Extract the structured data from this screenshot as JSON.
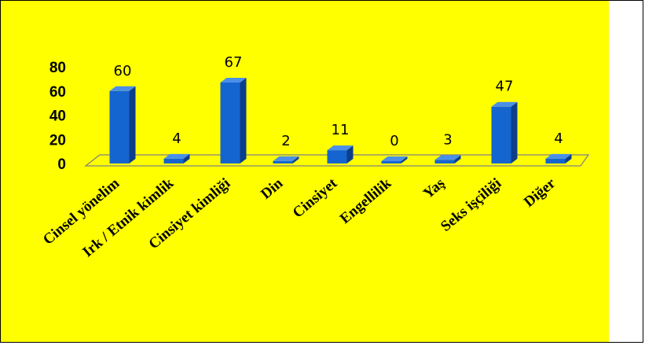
{
  "colors": {
    "background": "#FFFF00",
    "bar": "#1565D0",
    "bar_side": "#0D3E8A",
    "bar_top": "#4A8FE8"
  },
  "chart_data": {
    "type": "bar",
    "categories": [
      "Cinsel yönelim",
      "Irk / Etnik kimlik",
      "Cinsiyet kimliği",
      "Din",
      "Cinsiyet",
      "Engellilik",
      "Yaş",
      "Seks işçiliği",
      "Diğer"
    ],
    "values": [
      60,
      4,
      67,
      2,
      11,
      0,
      3,
      47,
      4
    ],
    "yticks": [
      "0",
      "20",
      "40",
      "60",
      "80"
    ],
    "ylim": [
      0,
      80
    ],
    "grid": false,
    "data_labels": [
      "60",
      "4",
      "67",
      "2",
      "11",
      "0",
      "3",
      "47",
      "4"
    ]
  }
}
